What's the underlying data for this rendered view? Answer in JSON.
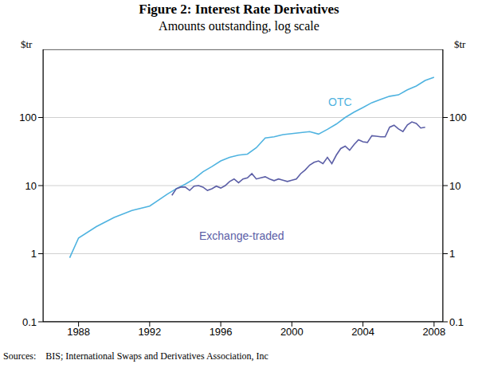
{
  "chart_data": {
    "type": "line",
    "title": "Figure 2: Interest Rate Derivatives",
    "subtitle": "Amounts outstanding, log scale",
    "y_label": "$tr",
    "source": "Sources:    BIS; International Swaps and Derivatives Association, Inc",
    "log": "y",
    "grid": true,
    "xlim": [
      1986,
      2008.5
    ],
    "xticks": [
      1988,
      1992,
      1996,
      2000,
      2004,
      2008
    ],
    "ylim": [
      0.1,
      1000
    ],
    "yticks": [
      0.1,
      1,
      10,
      100
    ],
    "series": [
      {
        "name": "OTC",
        "color": "#4fb3e0",
        "x": [
          1987.5,
          1988,
          1989,
          1990,
          1991,
          1992,
          1993,
          1993.5,
          1994,
          1994.5,
          1995,
          1995.5,
          1996,
          1996.5,
          1997,
          1997.5,
          1998,
          1998.5,
          1999,
          1999.5,
          2000,
          2000.5,
          2001,
          2001.5,
          2002,
          2002.5,
          2003,
          2003.5,
          2004,
          2004.5,
          2005,
          2005.5,
          2006,
          2006.5,
          2007,
          2007.5,
          2008
        ],
        "values": [
          0.87,
          1.7,
          2.5,
          3.4,
          4.3,
          5.0,
          7.5,
          9,
          10.5,
          12.5,
          16,
          19,
          23,
          26,
          28,
          29,
          36,
          50,
          52,
          56,
          58,
          60,
          62,
          57,
          67,
          80,
          100,
          120,
          140,
          165,
          185,
          205,
          215,
          255,
          290,
          350,
          390
        ]
      },
      {
        "name": "Exchange-traded",
        "color": "#5b5ea6",
        "x": [
          1993.25,
          1993.5,
          1993.75,
          1994,
          1994.25,
          1994.5,
          1994.75,
          1995,
          1995.25,
          1995.5,
          1995.75,
          1996,
          1996.25,
          1996.5,
          1996.75,
          1997,
          1997.25,
          1997.5,
          1997.75,
          1998,
          1998.25,
          1998.5,
          1998.75,
          1999,
          1999.25,
          1999.5,
          1999.75,
          2000,
          2000.25,
          2000.5,
          2000.75,
          2001,
          2001.25,
          2001.5,
          2001.75,
          2002,
          2002.25,
          2002.5,
          2002.75,
          2003,
          2003.25,
          2003.5,
          2003.75,
          2004,
          2004.25,
          2004.5,
          2004.75,
          2005,
          2005.25,
          2005.5,
          2005.75,
          2006,
          2006.25,
          2006.5,
          2006.75,
          2007,
          2007.25,
          2007.5
        ],
        "values": [
          7.2,
          9,
          9.5,
          9.5,
          8.5,
          9.8,
          10,
          9.5,
          8.5,
          9,
          9.8,
          9.2,
          10,
          11.5,
          12.5,
          11,
          12.5,
          13,
          15,
          12.5,
          13,
          13.5,
          12.5,
          11.8,
          12.5,
          12,
          11.5,
          12,
          12.5,
          15,
          17,
          20,
          22,
          23,
          21,
          26,
          21,
          28,
          35,
          38,
          33,
          40,
          47,
          44,
          43,
          54,
          53,
          52,
          52,
          72,
          77,
          68,
          62,
          78,
          86,
          82,
          70,
          72
        ]
      }
    ]
  }
}
